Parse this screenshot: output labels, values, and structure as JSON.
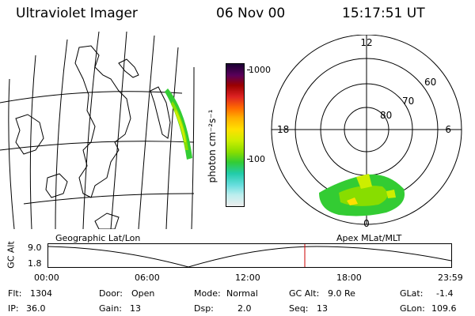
{
  "header": {
    "instrument": "Ultraviolet Imager",
    "date": "06 Nov 00",
    "time": "15:17:51 UT"
  },
  "colorbar": {
    "unit_label": "photon cm⁻²s⁻¹",
    "ticks": [
      "1000",
      "100"
    ],
    "colors": [
      "#1a0033",
      "#5a005a",
      "#9a0000",
      "#dd2222",
      "#ff6a00",
      "#ffb000",
      "#ffe000",
      "#ccee00",
      "#88dd00",
      "#33cc33",
      "#22ccaa",
      "#66dddd",
      "#bbeeee",
      "#eeeeee"
    ]
  },
  "polar": {
    "top": "12",
    "left": "18",
    "right": "6",
    "bottom": "0",
    "rings": [
      "60",
      "70",
      "80"
    ]
  },
  "timeline": {
    "left_title": "Geographic Lat/Lon",
    "right_title": "Apex MLat/MLT",
    "ylabel": "GC Alt",
    "y_top": "9.0",
    "y_bottom": "1.8",
    "x_ticks": [
      "00:00",
      "06:00",
      "12:00",
      "18:00",
      "23:59"
    ],
    "marker_color": "#cc0000"
  },
  "status": {
    "flt_label": "Flt:",
    "flt_value": "1304",
    "ip_label": "IP:",
    "ip_value": "36.0",
    "door_label": "Door:",
    "door_value": "Open",
    "gain_label": "Gain:",
    "gain_value": "13",
    "mode_label": "Mode:",
    "mode_value": "Normal",
    "dsp_label": "Dsp:",
    "dsp_value": "2.0",
    "gcalt_label": "GC Alt:",
    "gcalt_value": "9.0 Re",
    "seq_label": "Seq:",
    "seq_value": "13",
    "glat_label": "GLat:",
    "glat_value": "-1.4",
    "glon_label": "GLon:",
    "glon_value": "109.6"
  }
}
